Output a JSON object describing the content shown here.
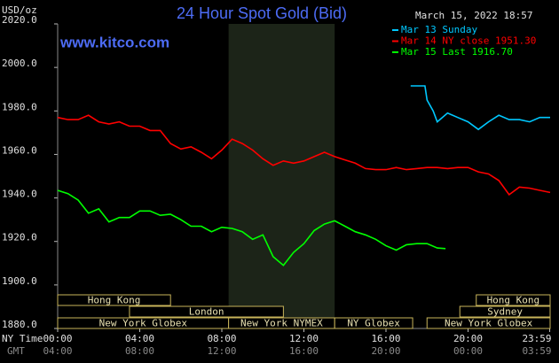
{
  "chart_data": {
    "type": "line",
    "title": "24 Hour Spot Gold (Bid)",
    "subtitle": "www.kitco.com",
    "timestamp": "March 15, 2022 18:57",
    "y_label": "USD/oz",
    "x_label": "NY Time",
    "x2_label": "GMT",
    "xlim": [
      0,
      24
    ],
    "xticks": [
      {
        "value": 0,
        "label": "00:00"
      },
      {
        "value": 4,
        "label": "04:00"
      },
      {
        "value": 8,
        "label": "08:00"
      },
      {
        "value": 12,
        "label": "12:00"
      },
      {
        "value": 16,
        "label": "16:00"
      },
      {
        "value": 20,
        "label": "20:00"
      },
      {
        "value": 23.98,
        "label": "23:59"
      }
    ],
    "x2tick_labels": [
      "04:00",
      "08:00",
      "12:00",
      "16:00",
      "20:00",
      "00:00",
      "03:59"
    ],
    "ylim": [
      1880,
      2020
    ],
    "yticks": [
      {
        "value": 1880,
        "label": "1880.0"
      },
      {
        "value": 1900,
        "label": "1900.0"
      },
      {
        "value": 1920,
        "label": "1920.0"
      },
      {
        "value": 1940,
        "label": "1940.0"
      },
      {
        "value": 1960,
        "label": "1960.0"
      },
      {
        "value": 1980,
        "label": "1980.0"
      },
      {
        "value": 2000,
        "label": "2000.0"
      },
      {
        "value": 2020,
        "label": "2020.0"
      }
    ],
    "highlight_x": [
      8.33,
      13.5
    ],
    "sessions": [
      {
        "name": "Hong Kong",
        "start": 0,
        "end": 5.5,
        "row": 0
      },
      {
        "name": "Hong Kong",
        "start": 20.4,
        "end": 24,
        "row": 0
      },
      {
        "name": "London",
        "start": 3.5,
        "end": 11,
        "row": 1
      },
      {
        "name": "Sydney",
        "start": 19.6,
        "end": 24,
        "row": 1
      },
      {
        "name": "New York Globex",
        "start": 0,
        "end": 8.33,
        "row": 2
      },
      {
        "name": "New York NYMEX",
        "start": 8.33,
        "end": 13.5,
        "row": 2
      },
      {
        "name": "NY Globex",
        "start": 13.5,
        "end": 17.3,
        "row": 2
      },
      {
        "name": "New York Globex",
        "start": 18,
        "end": 24,
        "row": 2
      }
    ],
    "series": [
      {
        "name": "Mar 13 Sunday",
        "color": "#00c8ff",
        "x": [
          17.2,
          17.9,
          18,
          18.3,
          18.5,
          19,
          19.5,
          20,
          20.5,
          21,
          21.5,
          22,
          22.5,
          23,
          23.5,
          24
        ],
        "values": [
          1991.5,
          1991.5,
          1985,
          1980,
          1975,
          1979,
          1977,
          1975,
          1971.5,
          1975,
          1978,
          1976,
          1976,
          1975,
          1977,
          1977
        ]
      },
      {
        "name": "Mar 14 NY close 1951.30",
        "color": "#ff0000",
        "x": [
          0,
          0.5,
          1,
          1.5,
          2,
          2.5,
          3,
          3.5,
          4,
          4.5,
          5,
          5.5,
          6,
          6.5,
          7,
          7.5,
          8,
          8.5,
          9,
          9.5,
          10,
          10.5,
          11,
          11.5,
          12,
          12.5,
          13,
          13.5,
          14,
          14.5,
          15,
          15.5,
          16,
          16.5,
          17,
          17.5,
          18,
          18.5,
          19,
          19.5,
          20,
          20.5,
          21,
          21.5,
          22,
          22.5,
          23,
          23.5,
          24
        ],
        "values": [
          1977,
          1976,
          1976,
          1978,
          1975,
          1974,
          1975,
          1973,
          1973,
          1971,
          1971,
          1965,
          1962.5,
          1963.5,
          1961,
          1958,
          1962,
          1967,
          1965,
          1962,
          1958,
          1955,
          1957,
          1956,
          1957,
          1959,
          1961,
          1959,
          1957.5,
          1956,
          1953.5,
          1953,
          1953,
          1954,
          1953,
          1953.5,
          1954,
          1954,
          1953.5,
          1954,
          1954,
          1952,
          1951,
          1948,
          1941.5,
          1945,
          1944.5,
          1943.5,
          1942.5
        ]
      },
      {
        "name": "Mar 15 Last 1916.70",
        "color": "#00ff00",
        "x": [
          0,
          0.5,
          1,
          1.5,
          2,
          2.5,
          3,
          3.5,
          4,
          4.5,
          5,
          5.5,
          6,
          6.5,
          7,
          7.5,
          8,
          8.5,
          9,
          9.5,
          10,
          10.5,
          11,
          11.5,
          12,
          12.5,
          13,
          13.5,
          14,
          14.5,
          15,
          15.5,
          16,
          16.5,
          17,
          17.5,
          18,
          18.5,
          18.9
        ],
        "values": [
          1943.5,
          1942,
          1939,
          1933,
          1935,
          1929,
          1931,
          1931,
          1934,
          1934,
          1932,
          1932.5,
          1930,
          1927,
          1927,
          1924.5,
          1926.5,
          1926,
          1924.5,
          1921,
          1923,
          1913,
          1909,
          1915,
          1919,
          1925,
          1928,
          1929.5,
          1927,
          1924.5,
          1923,
          1921,
          1918,
          1916,
          1918.5,
          1919,
          1919,
          1917,
          1916.7
        ]
      }
    ]
  }
}
